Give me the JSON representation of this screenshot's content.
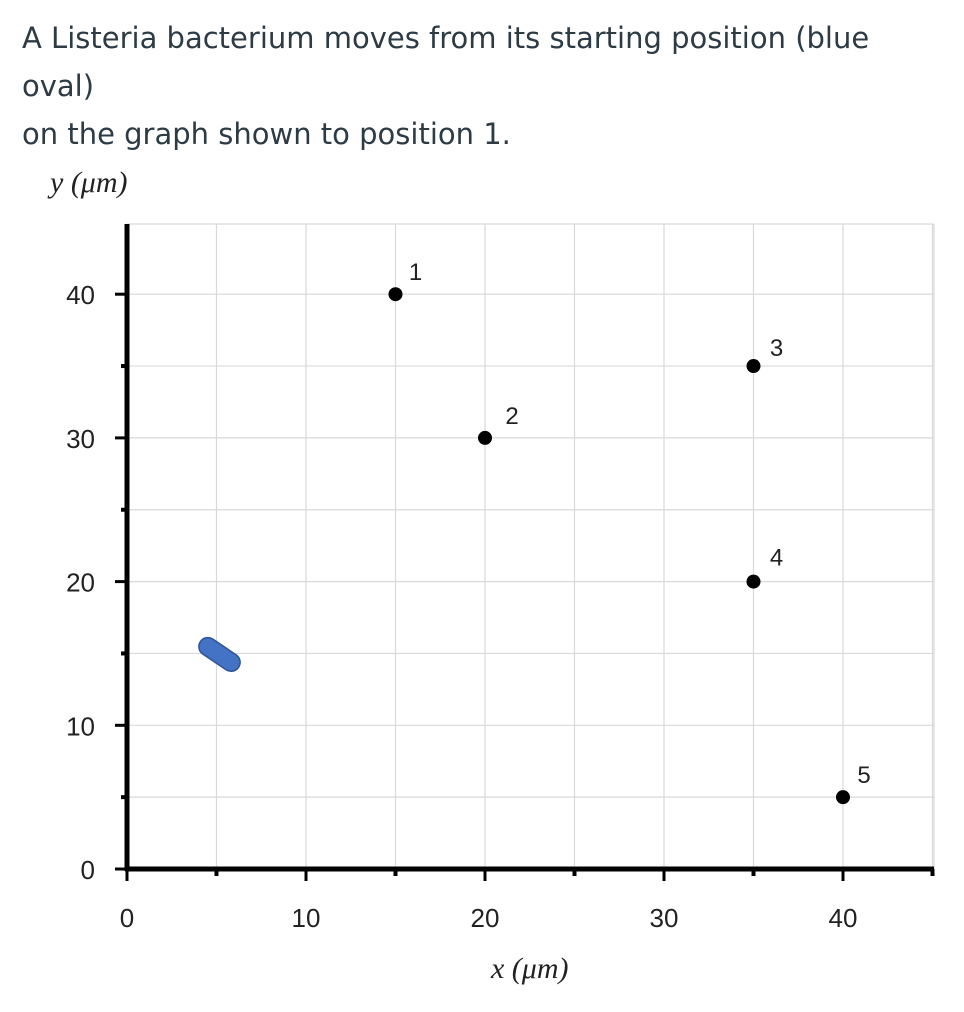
{
  "question": {
    "line1": "A Listeria bacterium moves from its starting position (blue oval)",
    "line2": "on the graph shown to position 1."
  },
  "chart_data": {
    "type": "scatter",
    "xlabel": "x (μm)",
    "ylabel": "y (μm)",
    "xlim": [
      0,
      45
    ],
    "ylim": [
      0,
      44
    ],
    "x_ticks": [
      0,
      10,
      20,
      30,
      40
    ],
    "y_ticks": [
      0,
      10,
      20,
      30,
      40
    ],
    "grid": true,
    "points": [
      {
        "label": "1",
        "x": 15,
        "y": 40
      },
      {
        "label": "2",
        "x": 20,
        "y": 30
      },
      {
        "label": "3",
        "x": 35,
        "y": 35
      },
      {
        "label": "4",
        "x": 35,
        "y": 20
      },
      {
        "label": "5",
        "x": 40,
        "y": 5
      }
    ],
    "start": {
      "x": 5,
      "y": 15,
      "color": "#4472c4"
    },
    "colors": {
      "point": "#000000",
      "grid": "#d9d9d9",
      "axis": "#000000"
    }
  }
}
